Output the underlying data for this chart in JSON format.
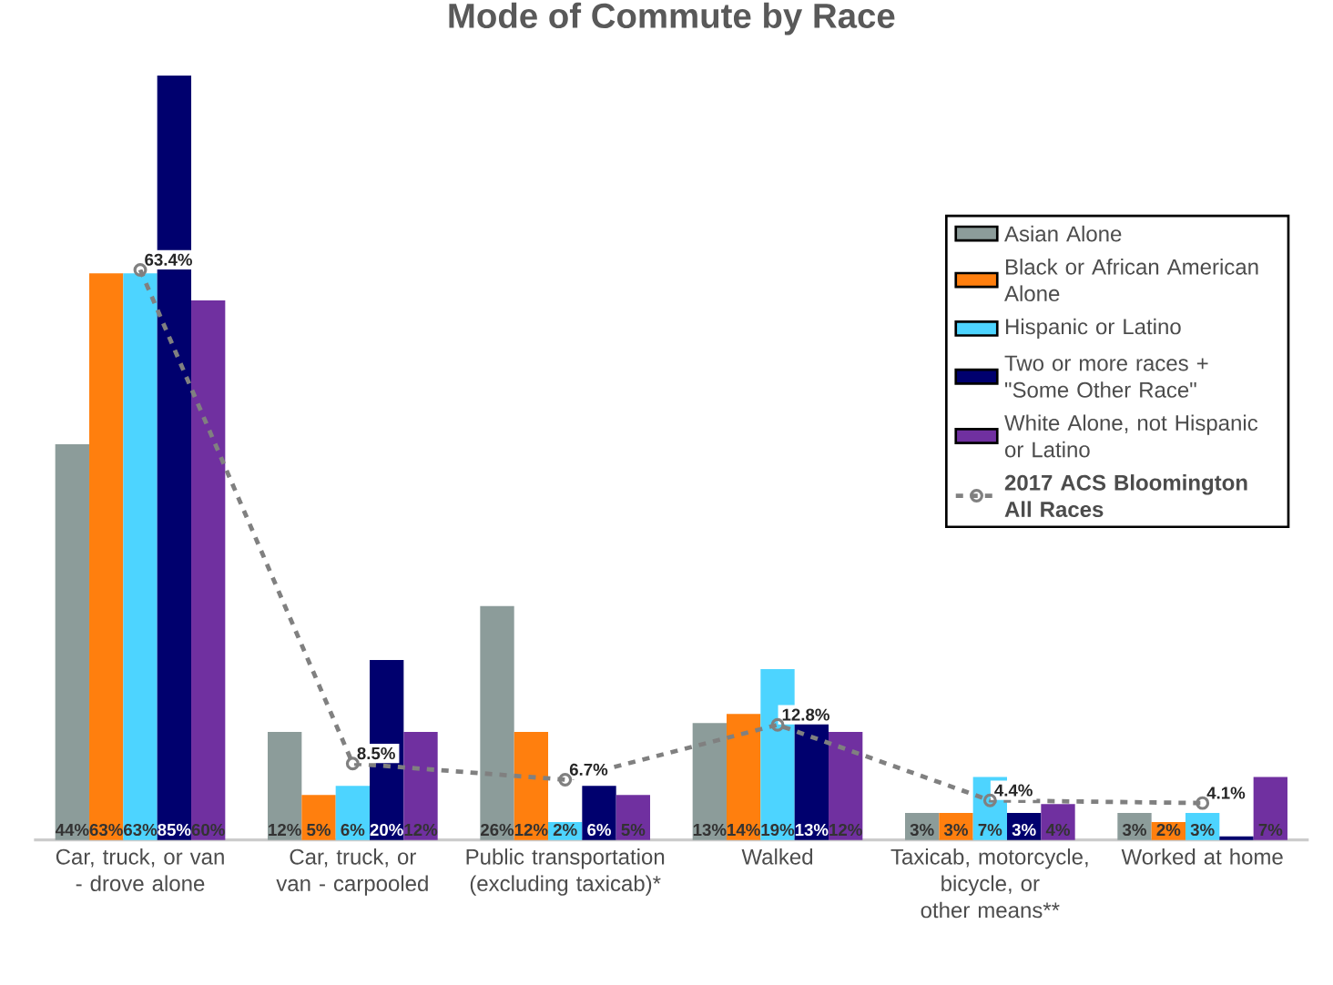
{
  "chart_data": {
    "type": "bar",
    "title": "Mode of Commute by Race",
    "categories": [
      "Car, truck, or van - drove alone",
      "Car, truck, or van - carpooled",
      "Public transportation (excluding taxicab)*",
      "Walked",
      "Taxicab, motorcycle, bicycle, or other means**",
      "Worked at home"
    ],
    "series": [
      {
        "name": "Asian Alone",
        "color": "#8c9c9a",
        "values": [
          44,
          12,
          26,
          13,
          3,
          3
        ],
        "value_labels": [
          "44%",
          "12%",
          "26%",
          "13%",
          "3%",
          "3%"
        ]
      },
      {
        "name": "Black or African American Alone",
        "color": "#ff7f0e",
        "values": [
          63,
          5,
          12,
          14,
          3,
          2
        ],
        "value_labels": [
          "63%",
          "5%",
          "12%",
          "14%",
          "3%",
          "2%"
        ]
      },
      {
        "name": "Hispanic or Latino",
        "color": "#4dd4ff",
        "values": [
          63,
          6,
          2,
          19,
          7,
          3
        ],
        "value_labels": [
          "63%",
          "6%",
          "2%",
          "19%",
          "7%",
          "3%"
        ]
      },
      {
        "name": "Two or more races + \"Some Other Race\"",
        "color": "#00006e",
        "values": [
          85,
          20,
          6,
          13,
          3,
          0.4
        ],
        "value_labels": [
          "85%",
          "20%",
          "6%",
          "13%",
          "3%",
          null
        ]
      },
      {
        "name": "White Alone, not Hispanic or Latino",
        "color": "#7030a0",
        "values": [
          60,
          12,
          5,
          12,
          4,
          7
        ],
        "value_labels": [
          "60%",
          "12%",
          "5%",
          "12%",
          "4%",
          "7%"
        ]
      },
      {
        "name": "2017 ACS Bloomington All Races",
        "type": "line",
        "color": "#808080",
        "marker": "circle",
        "line_style": "dashed",
        "values": [
          63.4,
          8.5,
          6.7,
          12.8,
          4.4,
          4.1
        ],
        "value_labels": [
          "63.4%",
          "8.5%",
          "6.7%",
          "12.8%",
          "4.4%",
          "4.1%"
        ]
      }
    ],
    "legend": "top right",
    "grid": false
  }
}
